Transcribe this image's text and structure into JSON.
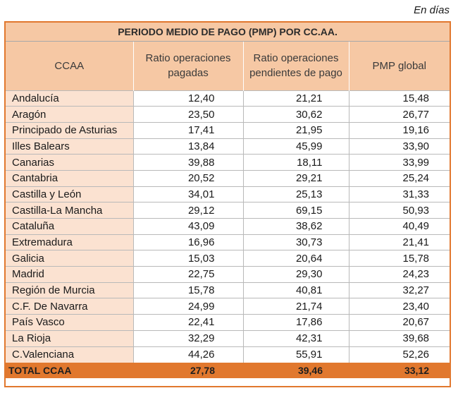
{
  "unit_note": "En días",
  "title": "PERIODO MEDIO DE PAGO (PMP) POR CC.AA.",
  "columns": {
    "ccaa": "CCAA",
    "ratio_pagadas": "Ratio operaciones pagadas",
    "ratio_pendientes": "Ratio operaciones pendientes de pago",
    "pmp_global": "PMP global"
  },
  "rows": [
    {
      "ccaa": "Andalucía",
      "pagadas": "12,40",
      "pendientes": "21,21",
      "pmp": "15,48"
    },
    {
      "ccaa": "Aragón",
      "pagadas": "23,50",
      "pendientes": "30,62",
      "pmp": "26,77"
    },
    {
      "ccaa": "Principado de Asturias",
      "pagadas": "17,41",
      "pendientes": "21,95",
      "pmp": "19,16"
    },
    {
      "ccaa": "Illes Balears",
      "pagadas": "13,84",
      "pendientes": "45,99",
      "pmp": "33,90"
    },
    {
      "ccaa": "Canarias",
      "pagadas": "39,88",
      "pendientes": "18,11",
      "pmp": "33,99"
    },
    {
      "ccaa": "Cantabria",
      "pagadas": "20,52",
      "pendientes": "29,21",
      "pmp": "25,24"
    },
    {
      "ccaa": "Castilla y León",
      "pagadas": "34,01",
      "pendientes": "25,13",
      "pmp": "31,33"
    },
    {
      "ccaa": "Castilla-La Mancha",
      "pagadas": "29,12",
      "pendientes": "69,15",
      "pmp": "50,93"
    },
    {
      "ccaa": "Cataluña",
      "pagadas": "43,09",
      "pendientes": "38,62",
      "pmp": "40,49"
    },
    {
      "ccaa": "Extremadura",
      "pagadas": "16,96",
      "pendientes": "30,73",
      "pmp": "21,41"
    },
    {
      "ccaa": "Galicia",
      "pagadas": "15,03",
      "pendientes": "20,64",
      "pmp": "15,78"
    },
    {
      "ccaa": "Madrid",
      "pagadas": "22,75",
      "pendientes": "29,30",
      "pmp": "24,23"
    },
    {
      "ccaa": "Región de Murcia",
      "pagadas": "15,78",
      "pendientes": "40,81",
      "pmp": "32,27"
    },
    {
      "ccaa": "C.F. De Navarra",
      "pagadas": "24,99",
      "pendientes": "21,74",
      "pmp": "23,40"
    },
    {
      "ccaa": "País Vasco",
      "pagadas": "22,41",
      "pendientes": "17,86",
      "pmp": "20,67"
    },
    {
      "ccaa": "La Rioja",
      "pagadas": "32,29",
      "pendientes": "42,31",
      "pmp": "39,68"
    },
    {
      "ccaa": "C.Valenciana",
      "pagadas": "44,26",
      "pendientes": "55,91",
      "pmp": "52,26"
    }
  ],
  "total": {
    "ccaa": "TOTAL CCAA",
    "pagadas": "27,78",
    "pendientes": "39,46",
    "pmp": "33,12"
  },
  "colors": {
    "accent": "#e1782e",
    "header_fill": "#f6c8a4",
    "name_fill": "#fbe2d1"
  }
}
